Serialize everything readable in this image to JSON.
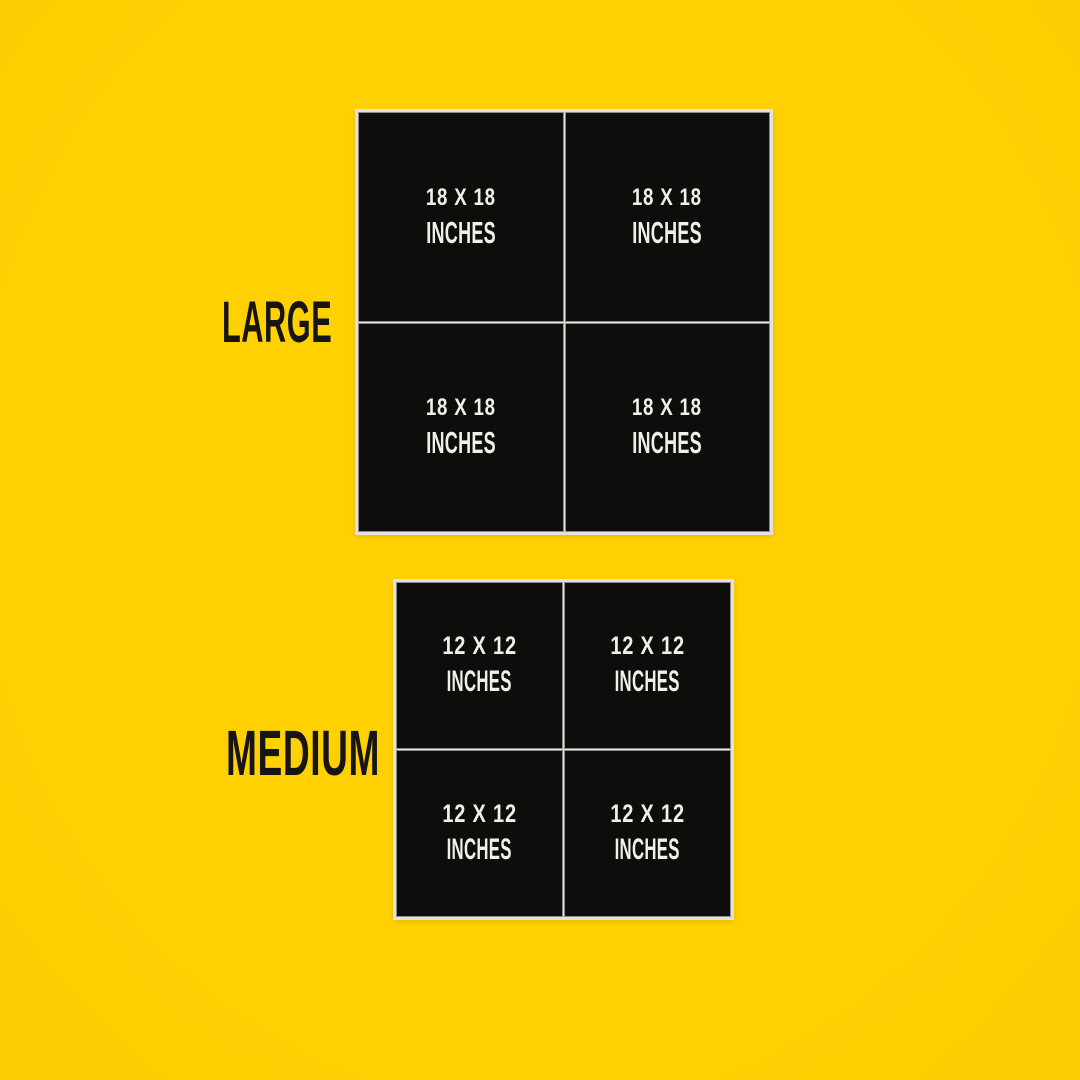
{
  "colors": {
    "background_yellow": "#ffd002",
    "panel_black": "#0e0d0b",
    "panel_border_gray": "#e2e1dc",
    "cell_text_white": "#f2efe7",
    "label_text_black": "#161513"
  },
  "grids": [
    {
      "id": "large",
      "label": "LARGE",
      "cells": [
        {
          "line1": "18 X 18",
          "line2": "INCHES"
        },
        {
          "line1": "18 X 18",
          "line2": "INCHES"
        },
        {
          "line1": "18 X 18",
          "line2": "INCHES"
        },
        {
          "line1": "18 X 18",
          "line2": "INCHES"
        }
      ]
    },
    {
      "id": "medium",
      "label": "MEDIUM",
      "cells": [
        {
          "line1": "12 X 12",
          "line2": "INCHES"
        },
        {
          "line1": "12 X 12",
          "line2": "INCHES"
        },
        {
          "line1": "12 X 12",
          "line2": "INCHES"
        },
        {
          "line1": "12 X 12",
          "line2": "INCHES"
        }
      ]
    }
  ]
}
